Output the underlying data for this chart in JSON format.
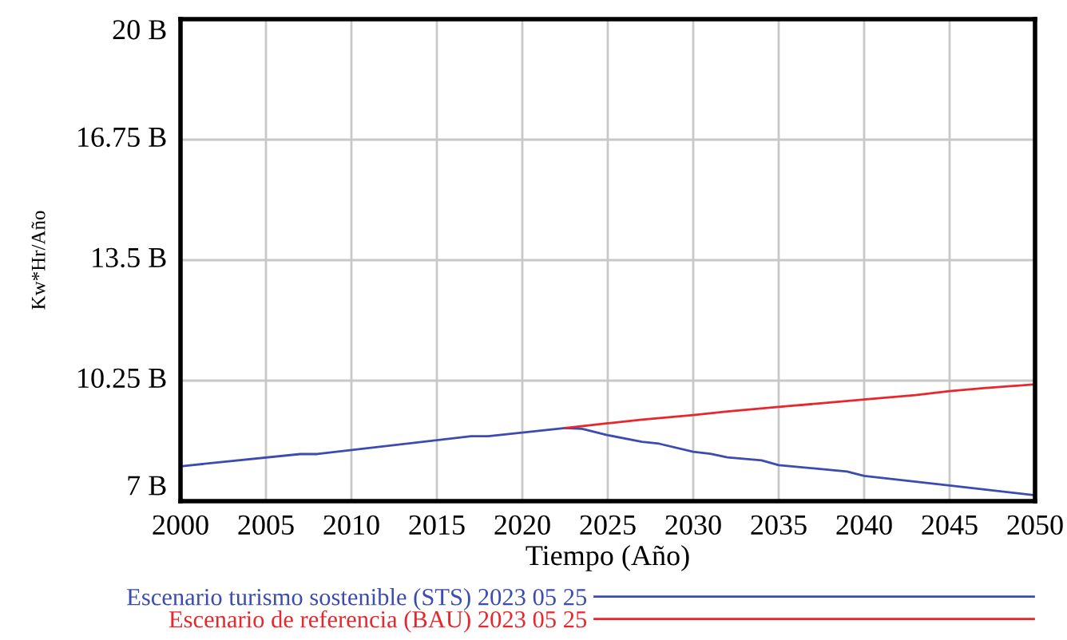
{
  "chart_data": {
    "type": "line",
    "xlabel": "Tiempo (Año)",
    "ylabel": "Kw*Hr/Año",
    "xlim": [
      2000,
      2050
    ],
    "xticks": [
      2000,
      2005,
      2010,
      2015,
      2020,
      2025,
      2030,
      2035,
      2040,
      2045,
      2050
    ],
    "ylim": [
      7,
      20
    ],
    "yticks": [
      {
        "value": 7,
        "label": "7 B"
      },
      {
        "value": 10.25,
        "label": "10.25 B"
      },
      {
        "value": 13.5,
        "label": "13.5 B"
      },
      {
        "value": 16.75,
        "label": "16.75 B"
      },
      {
        "value": 20,
        "label": "20 B"
      }
    ],
    "grid": true,
    "legend": "bottom",
    "line_style": "solid",
    "marker": "none",
    "series": [
      {
        "name": "Escenario turismo sostenible (STS) 2023 05 25",
        "color": "#3b4bb0",
        "x": [
          2000,
          2007,
          2008,
          2017,
          2018,
          2022.5,
          2023.5,
          2025,
          2027,
          2028,
          2030,
          2031,
          2032,
          2034,
          2035,
          2039,
          2040,
          2045,
          2050
        ],
        "values": [
          7.94,
          8.27,
          8.27,
          8.75,
          8.75,
          8.97,
          8.95,
          8.78,
          8.6,
          8.55,
          8.33,
          8.28,
          8.18,
          8.1,
          7.97,
          7.8,
          7.68,
          7.42,
          7.16
        ]
      },
      {
        "name": "Escenario de referencia (BAU) 2023 05 25",
        "color": "#e8262b",
        "x": [
          2022.5,
          2025,
          2027,
          2030,
          2032,
          2035,
          2038,
          2040,
          2043,
          2045,
          2047,
          2050
        ],
        "values": [
          8.97,
          9.1,
          9.2,
          9.32,
          9.42,
          9.54,
          9.66,
          9.74,
          9.86,
          9.97,
          10.05,
          10.15
        ]
      }
    ]
  }
}
